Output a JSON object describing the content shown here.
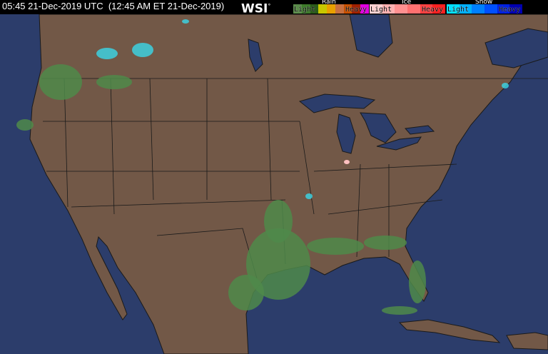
{
  "header": {
    "timestamp": "05:45 21-Dec-2019 UTC  (12:45 AM ET 21-Dec-2019)",
    "logo": "WSI",
    "logo_mark": "°"
  },
  "legend": {
    "rain": {
      "title": "Rain",
      "light": "Light",
      "heavy": "Heavy",
      "colors": [
        "#5a8a4a",
        "#3d7a2a",
        "#2a5a1a",
        "#c8c800",
        "#e8a000",
        "#c87040",
        "#c85000",
        "#a02000",
        "#e000e0"
      ]
    },
    "ice": {
      "title": "Ice",
      "light": "Light",
      "heavy": "Heavy",
      "colors": [
        "#ffd0d0",
        "#ffb0b0",
        "#ff9090",
        "#ff7070",
        "#ff4040",
        "#ff2020"
      ]
    },
    "snow": {
      "title": "Snow",
      "light": "Light",
      "heavy": "Heavy",
      "colors": [
        "#00e0ff",
        "#00b0ff",
        "#0080ff",
        "#0050ff",
        "#0020e0",
        "#0000b0"
      ]
    }
  },
  "map": {
    "ocean_color": "#2c3d6b",
    "land_color": "#725847",
    "border_color": "#1a1a1a",
    "precip_rain_color": "#4f8a4a",
    "precip_snow_color": "#3ad8e8",
    "precip_ice_color": "#ffc0c0"
  }
}
